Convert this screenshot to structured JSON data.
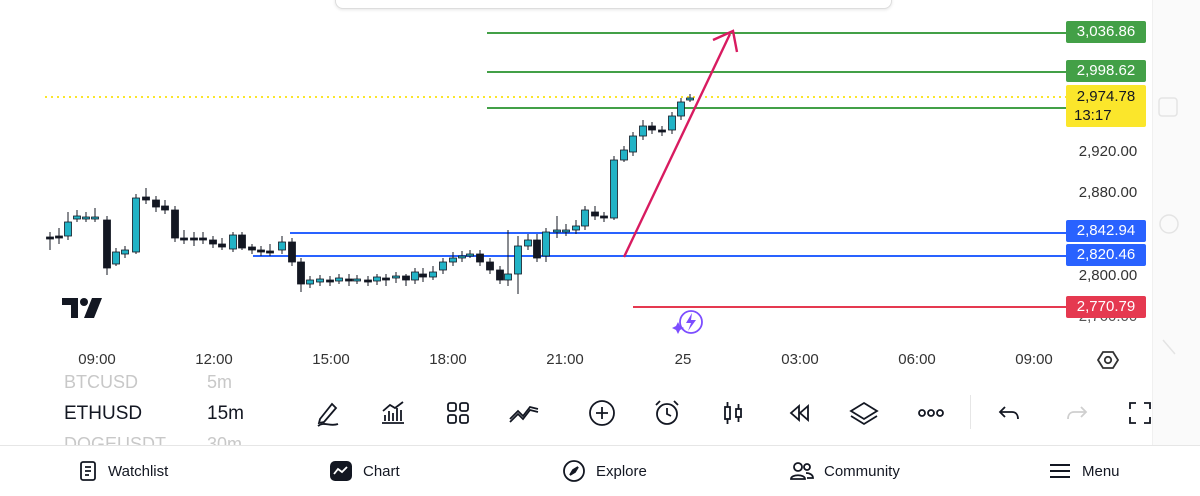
{
  "colors": {
    "green": "#43a047",
    "blue": "#2962ff",
    "red": "#e53950",
    "yellow": "#fbe62b",
    "candle_up": "#22b3c6",
    "candle_down": "#131722",
    "arrow": "#d81b60"
  },
  "price_axis": {
    "badges": [
      {
        "label": "3,036.86",
        "color": "#43a047"
      },
      {
        "label": "2,998.62",
        "color": "#43a047"
      },
      {
        "label": "2,974.78",
        "sub": "13:17",
        "color": "#fbe62b"
      },
      {
        "label": "2,842.94",
        "color": "#2962ff"
      },
      {
        "label": "2,820.46",
        "color": "#2962ff"
      },
      {
        "label": "2,770.79",
        "color": "#e53950"
      }
    ],
    "ticks": [
      "2,920.00",
      "2,880.00",
      "2,800.00",
      "2,760.00"
    ]
  },
  "time_axis": [
    "09:00",
    "12:00",
    "15:00",
    "18:00",
    "21:00",
    "25",
    "03:00",
    "06:00",
    "09:00"
  ],
  "toolbar": {
    "symbol_prev": "BTCUSD",
    "interval_prev": "5m",
    "symbol": "ETHUSD",
    "interval": "15m",
    "symbol_next": "DOGEUSDT",
    "interval_next": "30m"
  },
  "tools": [
    "draw-icon",
    "indicators-icon",
    "layouts-icon",
    "compare-icon",
    "add-icon",
    "alert-icon",
    "candles-icon",
    "replay-icon",
    "layers-icon",
    "more-icon",
    "undo-icon",
    "redo-icon",
    "fullscreen-icon"
  ],
  "nav": {
    "watchlist": "Watchlist",
    "chart": "Chart",
    "explore": "Explore",
    "community": "Community",
    "menu": "Menu"
  }
}
